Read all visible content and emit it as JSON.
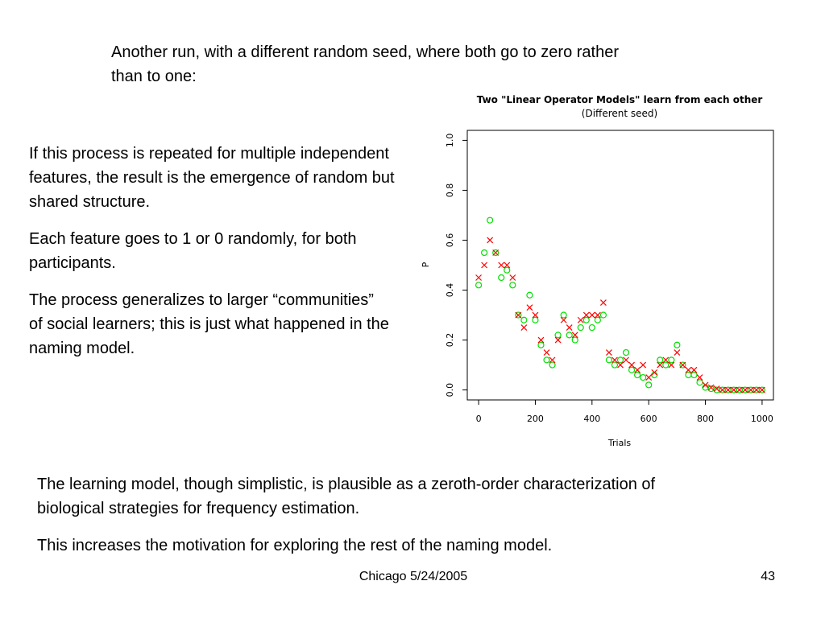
{
  "slide": {
    "intro": "Another run, with a different random seed, where both go to zero rather than to one:",
    "left_paragraphs": [
      "If this process is repeated for multiple independent features, the result is the emergence of random but shared structure.",
      "Each feature goes to 1 or 0 randomly, for both participants.",
      "The process generalizes to larger “communities” of social learners; this is just what happened in the naming model."
    ],
    "bottom_paragraphs": [
      "The learning model, though simplistic, is plausible as a zeroth-order characterization of biological strategies for frequency estimation.",
      "This increases the motivation for exploring the rest of the naming model."
    ],
    "footer": "Chicago 5/24/2005",
    "page_number": "43"
  },
  "chart_data": {
    "type": "scatter",
    "title": "Two \"Linear Operator Models\" learn from each other",
    "subtitle": "(Different seed)",
    "x_label": "Trials",
    "y_label": "P",
    "x": [
      0,
      20,
      40,
      60,
      80,
      100,
      120,
      140,
      160,
      180,
      200,
      220,
      240,
      260,
      280,
      300,
      320,
      340,
      360,
      380,
      400,
      420,
      440,
      460,
      480,
      500,
      520,
      540,
      560,
      580,
      600,
      620,
      640,
      660,
      680,
      700,
      720,
      740,
      760,
      780,
      800,
      820,
      840,
      860,
      880,
      900,
      920,
      940,
      960,
      980,
      1000
    ],
    "series": [
      {
        "color": "#00e000",
        "marker": "o",
        "values": [
          0.42,
          0.55,
          0.68,
          0.55,
          0.45,
          0.48,
          0.42,
          0.3,
          0.28,
          0.38,
          0.28,
          0.18,
          0.12,
          0.1,
          0.22,
          0.3,
          0.22,
          0.2,
          0.25,
          0.28,
          0.25,
          0.28,
          0.3,
          0.12,
          0.1,
          0.12,
          0.15,
          0.08,
          0.06,
          0.05,
          0.02,
          0.06,
          0.12,
          0.1,
          0.12,
          0.18,
          0.1,
          0.06,
          0.06,
          0.03,
          0.01,
          0.005,
          0,
          0,
          0,
          0,
          0,
          0,
          0,
          0,
          0
        ]
      },
      {
        "color": "#ff0000",
        "marker": "x",
        "values": [
          0.45,
          0.5,
          0.6,
          0.55,
          0.5,
          0.5,
          0.45,
          0.3,
          0.25,
          0.33,
          0.3,
          0.2,
          0.15,
          0.12,
          0.2,
          0.28,
          0.25,
          0.22,
          0.28,
          0.3,
          0.3,
          0.3,
          0.35,
          0.15,
          0.12,
          0.1,
          0.12,
          0.1,
          0.08,
          0.1,
          0.05,
          0.07,
          0.1,
          0.12,
          0.1,
          0.15,
          0.1,
          0.08,
          0.08,
          0.05,
          0.02,
          0.01,
          0.005,
          0,
          0,
          0,
          0,
          0,
          0,
          0,
          0
        ]
      }
    ],
    "xlim": [
      -40,
      1040
    ],
    "ylim": [
      -0.04,
      1.04
    ],
    "xticks": [
      0,
      200,
      400,
      600,
      800,
      1000
    ],
    "yticks": [
      {
        "value": 0,
        "label": "0.0"
      },
      0.2,
      0.4,
      0.6,
      0.8,
      {
        "value": 1,
        "label": "1.0"
      }
    ]
  }
}
